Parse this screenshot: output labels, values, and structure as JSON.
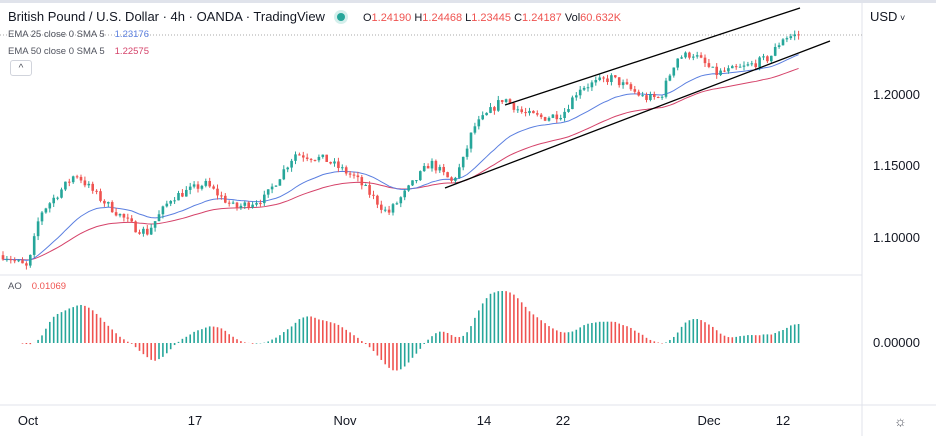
{
  "header": {
    "symbol_title": "British Pound / U.S. Dollar · 4h · OANDA · TradingView",
    "open_label": "O",
    "open": "1.24190",
    "high_label": "H",
    "high": "1.24468",
    "low_label": "L",
    "low": "1.23445",
    "close_label": "C",
    "close": "1.24187",
    "vol_label": "Vol",
    "vol": "60.632K",
    "status_color": "#26a69a"
  },
  "indicators": [
    {
      "label": "EMA 25 close 0 SMA 5",
      "value": "1.23176",
      "color": "#5b7fe0"
    },
    {
      "label": "EMA 50 close 0 SMA 5",
      "value": "1.22575",
      "color": "#d5436a"
    }
  ],
  "collapse_icon": "chevron-up-icon",
  "currency_menu": "USD",
  "oscillator": {
    "label": "AO",
    "value": "0.01069",
    "zero_label": "0.00000"
  },
  "settings_icon": "gear-icon",
  "colors": {
    "up": "#26a69a",
    "down": "#ef5350",
    "trendline": "#000000"
  },
  "chart_data": {
    "type": "candlestick",
    "title": "British Pound / U.S. Dollar · 4h · OANDA · TradingView",
    "x_ticks": [
      {
        "label": "Oct",
        "date": "2022-10-03"
      },
      {
        "label": "17",
        "date": "2022-10-17"
      },
      {
        "label": "Nov",
        "date": "2022-11-01"
      },
      {
        "label": "14",
        "date": "2022-11-14"
      },
      {
        "label": "22",
        "date": "2022-11-22"
      },
      {
        "label": "Dec",
        "date": "2022-12-01"
      },
      {
        "label": "12",
        "date": "2022-12-12"
      }
    ],
    "y_ticks": [
      "1.20000",
      "1.15000",
      "1.10000"
    ],
    "ylim": [
      1.065,
      1.265
    ],
    "approx_close_path": [
      [
        "2022-10-01",
        1.088
      ],
      [
        "2022-10-03",
        1.079
      ],
      [
        "2022-10-04",
        1.117
      ],
      [
        "2022-10-07",
        1.145
      ],
      [
        "2022-10-09",
        1.128
      ],
      [
        "2022-10-12",
        1.107
      ],
      [
        "2022-10-13",
        1.104
      ],
      [
        "2022-10-15",
        1.128
      ],
      [
        "2022-10-18",
        1.138
      ],
      [
        "2022-10-21",
        1.121
      ],
      [
        "2022-10-24",
        1.128
      ],
      [
        "2022-10-27",
        1.159
      ],
      [
        "2022-10-30",
        1.155
      ],
      [
        "2022-11-02",
        1.142
      ],
      [
        "2022-11-05",
        1.117
      ],
      [
        "2022-11-07",
        1.135
      ],
      [
        "2022-11-09",
        1.153
      ],
      [
        "2022-11-11",
        1.139
      ],
      [
        "2022-11-12",
        1.153
      ],
      [
        "2022-11-13",
        1.177
      ],
      [
        "2022-11-16",
        1.198
      ],
      [
        "2022-11-18",
        1.187
      ],
      [
        "2022-11-20",
        1.184
      ],
      [
        "2022-11-22",
        1.187
      ],
      [
        "2022-11-23",
        1.205
      ],
      [
        "2022-11-25",
        1.212
      ],
      [
        "2022-11-27",
        1.198
      ],
      [
        "2022-11-28",
        1.198
      ],
      [
        "2022-11-29",
        1.226
      ],
      [
        "2022-11-30",
        1.229
      ],
      [
        "2022-12-02",
        1.215
      ],
      [
        "2022-12-06",
        1.219
      ],
      [
        "2022-12-10",
        1.226
      ],
      [
        "2022-12-12",
        1.24
      ],
      [
        "2022-12-14",
        1.2419
      ]
    ],
    "series": [
      {
        "name": "EMA 25 close 0 SMA 5"
      },
      {
        "name": "EMA 50 close 0 SMA 5"
      },
      {
        "name": "AO"
      }
    ],
    "last_price": 1.24187
  }
}
